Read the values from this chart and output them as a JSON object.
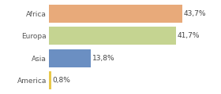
{
  "categories": [
    "Africa",
    "Europa",
    "Asia",
    "America"
  ],
  "values": [
    43.7,
    41.7,
    13.8,
    0.8
  ],
  "labels": [
    "43,7%",
    "41,7%",
    "13,8%",
    "0,8%"
  ],
  "bar_colors": [
    "#e8aa7a",
    "#c5d491",
    "#6b8fc2",
    "#e8c84a"
  ],
  "background_color": "#ffffff",
  "xlim": [
    0,
    55
  ],
  "bar_height": 0.82,
  "label_fontsize": 6.5,
  "tick_fontsize": 6.5
}
